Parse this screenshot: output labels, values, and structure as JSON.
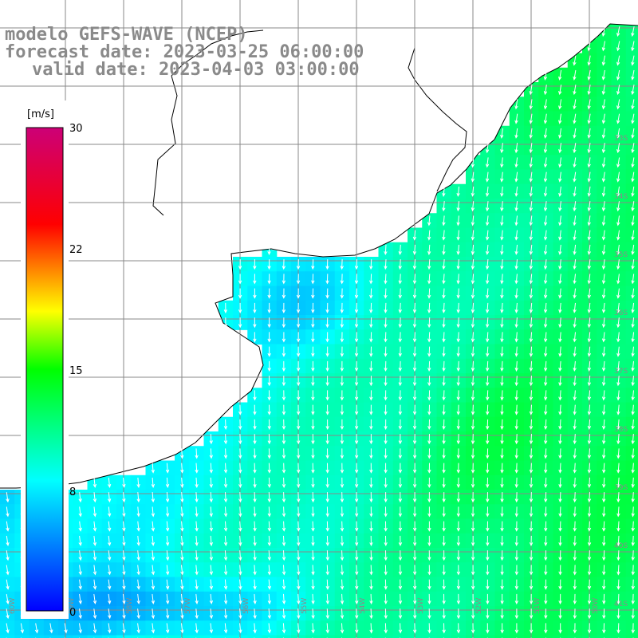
{
  "titles": {
    "line1": "modelo GEFS-WAVE (NCEP)",
    "line2": "forecast date: 2023-03-25 06:00:00",
    "line3": "valid date: 2023-04-03 03:00:00"
  },
  "colorbar": {
    "unit": "[m/s]",
    "min": 0,
    "max": 30,
    "ticks": [
      "30",
      "22",
      "15",
      "8",
      "0"
    ],
    "colors": [
      "#0000ff",
      "#00ffff",
      "#00ff00",
      "#ffff00",
      "#ff0000",
      "#cc0077"
    ]
  },
  "grid": {
    "lon_labels": [
      "60W",
      "59W",
      "58W",
      "57W",
      "56W",
      "55W",
      "54W",
      "53W",
      "52W",
      "51W",
      "50W"
    ],
    "lat_labels": [
      "33S",
      "34S",
      "35S",
      "36S",
      "37S",
      "38S",
      "39S",
      "40S",
      "41S"
    ]
  },
  "colors": {
    "land": "#ffffff",
    "coastline": "#000000",
    "gridline": "#888888",
    "arrow": "#ffffff",
    "title": "#8a8a8a"
  },
  "legend_position": "left"
}
